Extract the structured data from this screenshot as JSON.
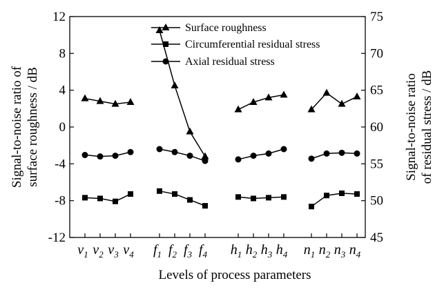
{
  "chart_data": {
    "type": "line",
    "xlabel": "Levels of process parameters",
    "ylabel_left": "Signal-to-noise ratio of surface roughness / dB",
    "ylabel_right": "Signal-to-noise ratio of residual stress / dB",
    "ylim_left": [
      -12,
      12
    ],
    "yticks_left": [
      "12",
      "8",
      "4",
      "0",
      "-4",
      "-8",
      "-12"
    ],
    "ylim_right": [
      45,
      75
    ],
    "yticks_right": [
      "75",
      "70",
      "65",
      "60",
      "55",
      "50",
      "45"
    ],
    "grid": false,
    "legend_position": "top-center",
    "groups": [
      {
        "letter": "v",
        "levels": [
          {
            "letter": "v",
            "sub": "1"
          },
          {
            "letter": "v",
            "sub": "2"
          },
          {
            "letter": "v",
            "sub": "3"
          },
          {
            "letter": "v",
            "sub": "4"
          }
        ]
      },
      {
        "letter": "f",
        "levels": [
          {
            "letter": "f",
            "sub": "1"
          },
          {
            "letter": "f",
            "sub": "2"
          },
          {
            "letter": "f",
            "sub": "3"
          },
          {
            "letter": "f",
            "sub": "4"
          }
        ]
      },
      {
        "letter": "h",
        "levels": [
          {
            "letter": "h",
            "sub": "1"
          },
          {
            "letter": "h",
            "sub": "2"
          },
          {
            "letter": "h",
            "sub": "3"
          },
          {
            "letter": "h",
            "sub": "4"
          }
        ]
      },
      {
        "letter": "n",
        "levels": [
          {
            "letter": "n",
            "sub": "1"
          },
          {
            "letter": "n",
            "sub": "2"
          },
          {
            "letter": "n",
            "sub": "3"
          },
          {
            "letter": "n",
            "sub": "4"
          }
        ]
      }
    ],
    "series": [
      {
        "name": "Surface roughness",
        "axis": "left",
        "marker": "triangle",
        "values": [
          [
            3.1,
            2.8,
            2.5,
            2.7
          ],
          [
            10.5,
            4.5,
            -0.5,
            -3.2
          ],
          [
            1.9,
            2.7,
            3.2,
            3.5
          ],
          [
            1.9,
            3.7,
            2.5,
            3.3
          ]
        ]
      },
      {
        "name": "Circumferential residual stress",
        "axis": "right",
        "marker": "square",
        "values": [
          [
            50.4,
            50.3,
            49.9,
            50.9
          ],
          [
            51.3,
            50.9,
            50.1,
            49.3
          ],
          [
            50.5,
            50.3,
            50.4,
            50.5
          ],
          [
            49.2,
            50.7,
            51.0,
            50.9
          ]
        ]
      },
      {
        "name": "Axial residual stress",
        "axis": "right",
        "marker": "circle",
        "values": [
          [
            56.2,
            56.0,
            56.1,
            56.6
          ],
          [
            57.0,
            56.6,
            56.1,
            55.4
          ],
          [
            55.6,
            56.1,
            56.4,
            57.0
          ],
          [
            55.7,
            56.4,
            56.5,
            56.4
          ]
        ]
      }
    ]
  }
}
